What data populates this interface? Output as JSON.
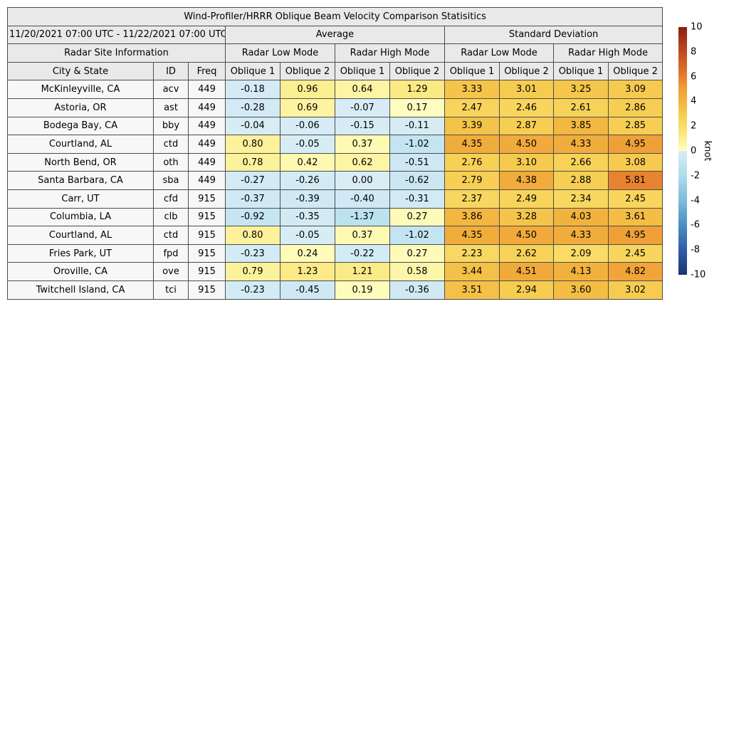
{
  "chart_data": {
    "type": "heatmap-table",
    "title": "Wind-Profiler/HRRR Oblique Beam Velocity Comparison Statisitics",
    "date_range": "11/20/2021 07:00 UTC - 11/22/2021 07:00 UTC",
    "group_headers": {
      "average": "Average",
      "std_dev": "Standard Deviation"
    },
    "labels": {
      "site_info": "Radar Site Information",
      "low_mode": "Radar Low Mode",
      "high_mode": "Radar High Mode",
      "city": "City & State",
      "id": "ID",
      "freq": "Freq",
      "oblique1": "Oblique 1",
      "oblique2": "Oblique 2"
    },
    "value_column_order": [
      "Average / Radar Low Mode / Oblique 1",
      "Average / Radar Low Mode / Oblique 2",
      "Average / Radar High Mode / Oblique 1",
      "Average / Radar High Mode / Oblique 2",
      "Standard Deviation / Radar Low Mode / Oblique 1",
      "Standard Deviation / Radar Low Mode / Oblique 2",
      "Standard Deviation / Radar High Mode / Oblique 1",
      "Standard Deviation / Radar High Mode / Oblique 2"
    ],
    "rows": [
      {
        "city": "McKinleyville, CA",
        "id": "acv",
        "freq": "449",
        "values": [
          "-0.18",
          "0.96",
          "0.64",
          "1.29",
          "3.33",
          "3.01",
          "3.25",
          "3.09"
        ]
      },
      {
        "city": "Astoria, OR",
        "id": "ast",
        "freq": "449",
        "values": [
          "-0.28",
          "0.69",
          "-0.07",
          "0.17",
          "2.47",
          "2.46",
          "2.61",
          "2.86"
        ]
      },
      {
        "city": "Bodega Bay, CA",
        "id": "bby",
        "freq": "449",
        "values": [
          "-0.04",
          "-0.06",
          "-0.15",
          "-0.11",
          "3.39",
          "2.87",
          "3.85",
          "2.85"
        ]
      },
      {
        "city": "Courtland, AL",
        "id": "ctd",
        "freq": "449",
        "values": [
          "0.80",
          "-0.05",
          "0.37",
          "-1.02",
          "4.35",
          "4.50",
          "4.33",
          "4.95"
        ]
      },
      {
        "city": "North Bend, OR",
        "id": "oth",
        "freq": "449",
        "values": [
          "0.78",
          "0.42",
          "0.62",
          "-0.51",
          "2.76",
          "3.10",
          "2.66",
          "3.08"
        ]
      },
      {
        "city": "Santa Barbara, CA",
        "id": "sba",
        "freq": "449",
        "values": [
          "-0.27",
          "-0.26",
          "0.00",
          "-0.62",
          "2.79",
          "4.38",
          "2.88",
          "5.81"
        ]
      },
      {
        "city": "Carr, UT",
        "id": "cfd",
        "freq": "915",
        "values": [
          "-0.37",
          "-0.39",
          "-0.40",
          "-0.31",
          "2.37",
          "2.49",
          "2.34",
          "2.45"
        ]
      },
      {
        "city": "Columbia, LA",
        "id": "clb",
        "freq": "915",
        "values": [
          "-0.92",
          "-0.35",
          "-1.37",
          "0.27",
          "3.86",
          "3.28",
          "4.03",
          "3.61"
        ]
      },
      {
        "city": "Courtland, AL",
        "id": "ctd",
        "freq": "915",
        "values": [
          "0.80",
          "-0.05",
          "0.37",
          "-1.02",
          "4.35",
          "4.50",
          "4.33",
          "4.95"
        ]
      },
      {
        "city": "Fries Park, UT",
        "id": "fpd",
        "freq": "915",
        "values": [
          "-0.23",
          "0.24",
          "-0.22",
          "0.27",
          "2.23",
          "2.62",
          "2.09",
          "2.45"
        ]
      },
      {
        "city": "Oroville, CA",
        "id": "ove",
        "freq": "915",
        "values": [
          "0.79",
          "1.23",
          "1.21",
          "0.58",
          "3.44",
          "4.51",
          "4.13",
          "4.82"
        ]
      },
      {
        "city": "Twitchell Island, CA",
        "id": "tci",
        "freq": "915",
        "values": [
          "-0.23",
          "-0.45",
          "0.19",
          "-0.36",
          "3.51",
          "2.94",
          "3.60",
          "3.02"
        ]
      }
    ],
    "colorbar": {
      "unit": "knot",
      "ticks": [
        10,
        8,
        6,
        4,
        2,
        0,
        -2,
        -4,
        -6,
        -8,
        -10
      ],
      "vmin": -10,
      "vmax": 10
    },
    "colormap": {
      "positive": [
        [
          0,
          "#ffffc8"
        ],
        [
          1,
          "#fcee90"
        ],
        [
          2,
          "#f9dc68"
        ],
        [
          3,
          "#f6cc50"
        ],
        [
          4,
          "#f2b43e"
        ],
        [
          5,
          "#efa038"
        ],
        [
          6,
          "#e67c2e"
        ],
        [
          8,
          "#c04a24"
        ],
        [
          10,
          "#8a1e10"
        ]
      ],
      "negative": [
        [
          -10,
          "#1c3373"
        ],
        [
          -8,
          "#2f5ba8"
        ],
        [
          -6,
          "#4a8ec2"
        ],
        [
          -4,
          "#7fbcd9"
        ],
        [
          -2,
          "#b0dbec"
        ],
        [
          -1,
          "#c3e4f1"
        ],
        [
          0,
          "#d8edf6"
        ]
      ]
    }
  }
}
